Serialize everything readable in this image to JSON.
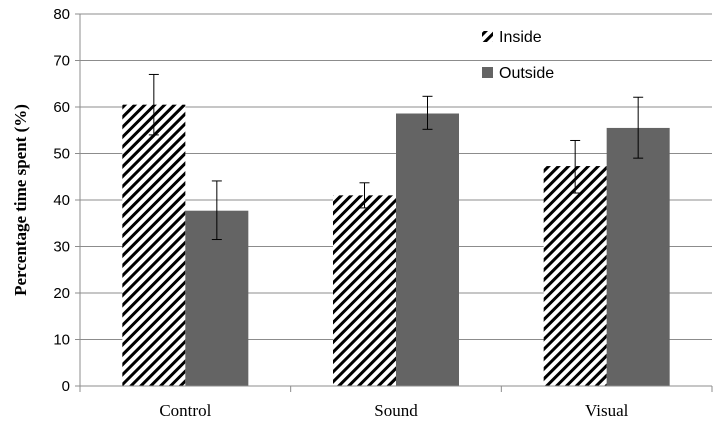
{
  "chart_data": {
    "type": "bar",
    "title": "",
    "xlabel": "",
    "ylabel": "Percentage time spent (%)",
    "ylim": [
      0,
      80
    ],
    "yticks": [
      0,
      10,
      20,
      30,
      40,
      50,
      60,
      70,
      80
    ],
    "grid": true,
    "legend_position": "top-right",
    "categories": [
      "Control",
      "Sound",
      "Visual"
    ],
    "series": [
      {
        "name": "Inside",
        "pattern": "diagonal-hatch",
        "color": "#000000",
        "values": [
          60.5,
          41,
          47.3
        ],
        "error_low": [
          54,
          38.3,
          41.5
        ],
        "error_high": [
          67,
          43.7,
          52.8
        ]
      },
      {
        "name": "Outside",
        "pattern": "solid",
        "color": "#646464",
        "values": [
          37.7,
          58.6,
          55.5
        ],
        "error_low": [
          31.5,
          55.2,
          49
        ],
        "error_high": [
          44.1,
          62.3,
          62.1
        ]
      }
    ]
  }
}
